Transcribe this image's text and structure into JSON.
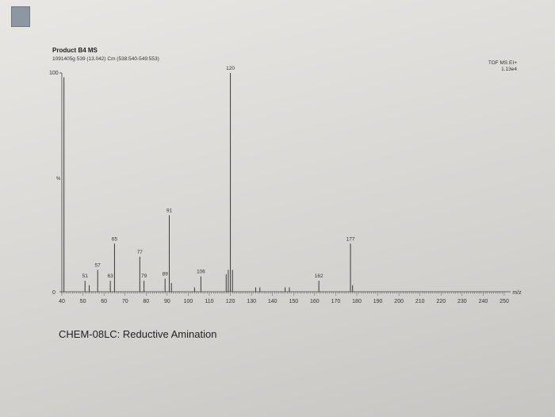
{
  "header": {
    "title": "Product B4 MS",
    "subtitle": "1091405g 539 (13.042) Cm (538:540-549:553)",
    "mode_line1": "TOF MS EI+",
    "mode_line2": "1.13e4"
  },
  "caption": "CHEM-08LC: Reductive Amination",
  "chart_data": {
    "type": "bar",
    "title": "Product B4 MS",
    "xlabel": "m/z",
    "ylabel": "%",
    "xlim": [
      40,
      250
    ],
    "ylim": [
      0,
      100
    ],
    "x_ticks": [
      40,
      50,
      60,
      70,
      80,
      90,
      100,
      110,
      120,
      130,
      140,
      150,
      160,
      170,
      180,
      190,
      200,
      210,
      220,
      230,
      240,
      250
    ],
    "y_tick_labels": [
      "0",
      "100"
    ],
    "y_mid_label": "%",
    "peaks": [
      {
        "x": 41,
        "y": 98
      },
      {
        "x": 51,
        "y": 5,
        "label": "51"
      },
      {
        "x": 53,
        "y": 3
      },
      {
        "x": 57,
        "y": 10,
        "label": "57"
      },
      {
        "x": 63,
        "y": 5,
        "label": "63"
      },
      {
        "x": 65,
        "y": 22,
        "label": "65"
      },
      {
        "x": 77,
        "y": 16,
        "label": "77"
      },
      {
        "x": 79,
        "y": 5,
        "label": "79"
      },
      {
        "x": 89,
        "y": 6,
        "label": "89"
      },
      {
        "x": 91,
        "y": 35,
        "label": "91"
      },
      {
        "x": 92,
        "y": 4
      },
      {
        "x": 103,
        "y": 2
      },
      {
        "x": 106,
        "y": 7,
        "label": "106"
      },
      {
        "x": 118,
        "y": 8
      },
      {
        "x": 119,
        "y": 10
      },
      {
        "x": 120,
        "y": 100,
        "label": "120"
      },
      {
        "x": 121,
        "y": 10
      },
      {
        "x": 132,
        "y": 2
      },
      {
        "x": 134,
        "y": 2
      },
      {
        "x": 146,
        "y": 2
      },
      {
        "x": 148,
        "y": 2
      },
      {
        "x": 162,
        "y": 5,
        "label": "162"
      },
      {
        "x": 177,
        "y": 22,
        "label": "177"
      },
      {
        "x": 178,
        "y": 3
      }
    ]
  }
}
